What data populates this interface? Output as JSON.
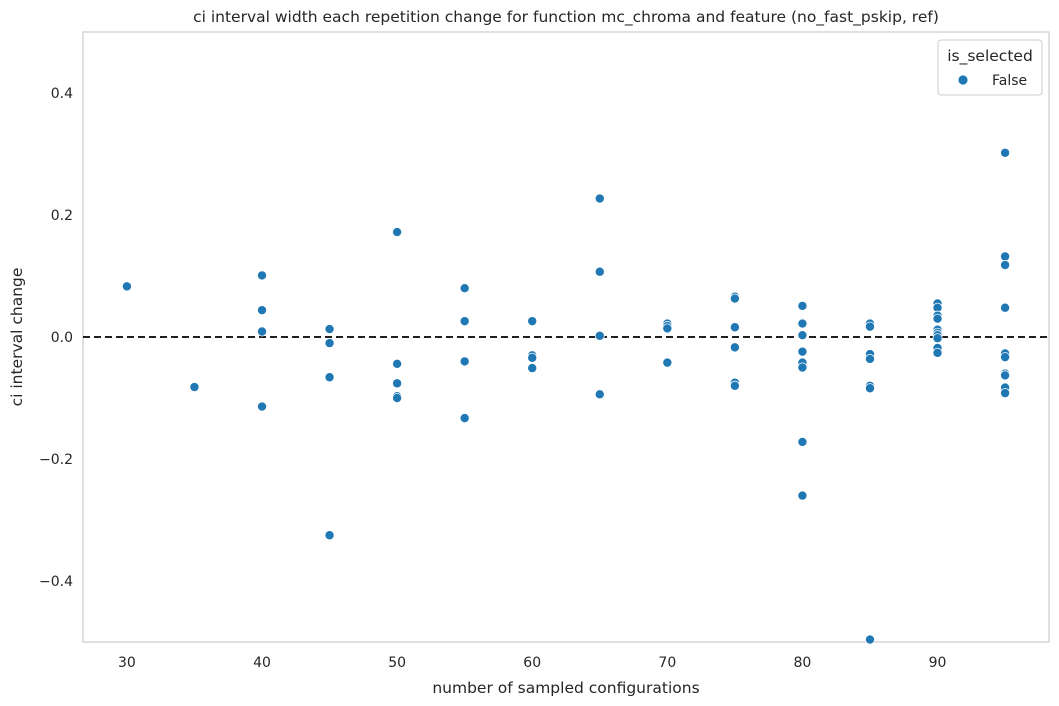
{
  "chart_data": {
    "type": "scatter",
    "title": "ci interval width each repetition change for function mc_chroma and feature (no_fast_pskip, ref)",
    "xlabel": "number of sampled configurations",
    "ylabel": "ci interval change",
    "xlim": [
      26.75,
      98.25
    ],
    "ylim": [
      -0.5,
      0.5
    ],
    "xticks": [
      30,
      40,
      50,
      60,
      70,
      80,
      90
    ],
    "yticks": [
      -0.4,
      -0.2,
      0.0,
      0.2,
      0.4
    ],
    "ytick_labels": [
      "−0.4",
      "−0.2",
      "0.0",
      "0.2",
      "0.4"
    ],
    "grid": false,
    "reference_line": {
      "y": 0.0,
      "style": "dashed",
      "color": "#000000"
    },
    "legend": {
      "title": "is_selected",
      "position": "top-right",
      "entries": [
        {
          "label": "False",
          "color": "#1f77b4"
        }
      ]
    },
    "series": [
      {
        "name": "False",
        "color": "#1f77b4",
        "points": [
          [
            30,
            0.083
          ],
          [
            35,
            -0.082
          ],
          [
            40,
            0.101
          ],
          [
            40,
            0.044
          ],
          [
            40,
            0.009
          ],
          [
            40,
            -0.114
          ],
          [
            45,
            0.013
          ],
          [
            45,
            -0.01
          ],
          [
            45,
            -0.066
          ],
          [
            45,
            -0.325
          ],
          [
            50,
            0.172
          ],
          [
            50,
            -0.044
          ],
          [
            50,
            -0.076
          ],
          [
            50,
            -0.097
          ],
          [
            50,
            -0.1
          ],
          [
            55,
            0.08
          ],
          [
            55,
            0.026
          ],
          [
            55,
            -0.04
          ],
          [
            55,
            -0.133
          ],
          [
            60,
            0.026
          ],
          [
            60,
            -0.03
          ],
          [
            60,
            -0.034
          ],
          [
            60,
            -0.051
          ],
          [
            65,
            0.227
          ],
          [
            65,
            0.107
          ],
          [
            65,
            0.002
          ],
          [
            65,
            -0.094
          ],
          [
            70,
            0.022
          ],
          [
            70,
            0.018
          ],
          [
            70,
            0.014
          ],
          [
            70,
            -0.042
          ],
          [
            75,
            0.066
          ],
          [
            75,
            0.063
          ],
          [
            75,
            0.016
          ],
          [
            75,
            -0.017
          ],
          [
            75,
            -0.075
          ],
          [
            75,
            -0.08
          ],
          [
            80,
            0.051
          ],
          [
            80,
            0.022
          ],
          [
            80,
            0.003
          ],
          [
            80,
            -0.024
          ],
          [
            80,
            -0.042
          ],
          [
            80,
            -0.05
          ],
          [
            80,
            -0.172
          ],
          [
            80,
            -0.26
          ],
          [
            85,
            0.022
          ],
          [
            85,
            0.017
          ],
          [
            85,
            -0.028
          ],
          [
            85,
            -0.036
          ],
          [
            85,
            -0.08
          ],
          [
            85,
            -0.084
          ],
          [
            85,
            -0.496
          ],
          [
            90,
            0.055
          ],
          [
            90,
            0.048
          ],
          [
            90,
            0.035
          ],
          [
            90,
            0.03
          ],
          [
            90,
            0.012
          ],
          [
            90,
            0.007
          ],
          [
            90,
            0.003
          ],
          [
            90,
            -0.002
          ],
          [
            90,
            -0.018
          ],
          [
            90,
            -0.026
          ],
          [
            95,
            0.302
          ],
          [
            95,
            0.132
          ],
          [
            95,
            0.118
          ],
          [
            95,
            0.048
          ],
          [
            95,
            -0.027
          ],
          [
            95,
            -0.033
          ],
          [
            95,
            -0.06
          ],
          [
            95,
            -0.063
          ],
          [
            95,
            -0.083
          ],
          [
            95,
            -0.092
          ]
        ]
      }
    ]
  }
}
